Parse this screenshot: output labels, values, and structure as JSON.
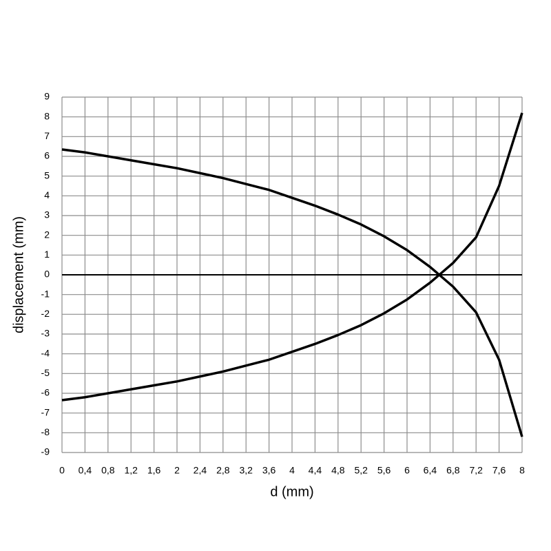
{
  "chart_data": {
    "type": "line",
    "x_label": "d (mm)",
    "y_label": "displacement (mm)",
    "x": [
      0,
      0.4,
      0.8,
      1.2,
      1.6,
      2.0,
      2.4,
      2.8,
      3.2,
      3.6,
      4.0,
      4.4,
      4.8,
      5.2,
      5.6,
      6.0,
      6.4,
      6.8,
      7.2,
      7.6,
      8.0
    ],
    "series": [
      {
        "color": "#000000",
        "values": [
          6.35,
          6.2,
          6.0,
          5.8,
          5.6,
          5.4,
          5.15,
          4.9,
          4.6,
          4.3,
          3.9,
          3.5,
          3.05,
          2.55,
          1.95,
          1.25,
          0.4,
          -0.6,
          -1.9,
          -4.3,
          -8.2
        ]
      },
      {
        "color": "#000000",
        "values": [
          -6.35,
          -6.2,
          -6.0,
          -5.8,
          -5.6,
          -5.4,
          -5.15,
          -4.9,
          -4.6,
          -4.3,
          -3.9,
          -3.5,
          -3.05,
          -2.55,
          -1.95,
          -1.25,
          -0.4,
          0.6,
          1.9,
          4.5,
          8.2
        ]
      }
    ],
    "xlim": [
      0,
      8
    ],
    "xticks": [
      0,
      {
        "value": 0.4,
        "label": "0,4"
      },
      {
        "value": 0.8,
        "label": "0,8"
      },
      {
        "value": 1.2,
        "label": "1,2"
      },
      {
        "value": 1.6,
        "label": "1,6"
      },
      2,
      {
        "value": 2.4,
        "label": "2,4"
      },
      {
        "value": 2.8,
        "label": "2,8"
      },
      {
        "value": 3.2,
        "label": "3,2"
      },
      {
        "value": 3.6,
        "label": "3,6"
      },
      4,
      {
        "value": 4.4,
        "label": "4,4"
      },
      {
        "value": 4.8,
        "label": "4,8"
      },
      {
        "value": 5.2,
        "label": "5,2"
      },
      {
        "value": 5.6,
        "label": "5,6"
      },
      6,
      {
        "value": 6.4,
        "label": "6,4"
      },
      {
        "value": 6.8,
        "label": "6,8"
      },
      {
        "value": 7.2,
        "label": "7,2"
      },
      {
        "value": 7.6,
        "label": "7,6"
      },
      8
    ],
    "ylim": [
      -9,
      9
    ],
    "yticks": [
      -9,
      -8,
      -7,
      -6,
      -5,
      -4,
      -3,
      -2,
      -1,
      0,
      1,
      2,
      3,
      4,
      5,
      6,
      7,
      8,
      9
    ],
    "grid": true
  }
}
